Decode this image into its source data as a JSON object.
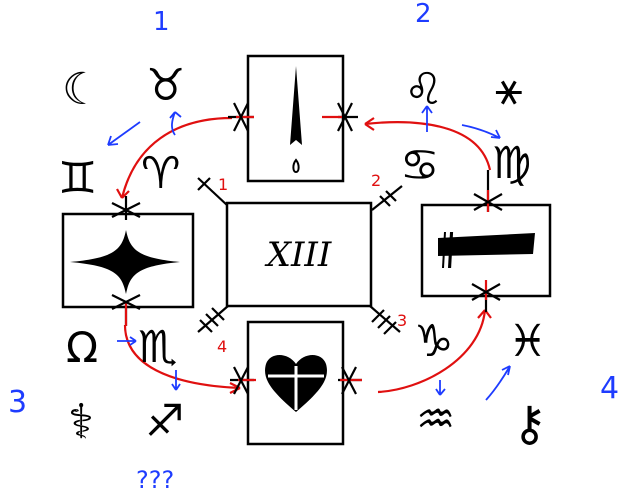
{
  "center": {
    "text": "XIII"
  },
  "corner_numbers": [
    "1",
    "2",
    "3",
    "4"
  ],
  "connector_numbers": [
    "1",
    "2",
    "3",
    "4"
  ],
  "note": "???",
  "glyphs": {
    "moon": "☾",
    "taurus": "♉",
    "gemini": "♊",
    "aries": "♈",
    "leo": "♌",
    "asterisk": "⚹",
    "cancer": "♋",
    "virgo": "♍",
    "omega": "Ω",
    "scorpio": "♏",
    "caduceus": "⚕",
    "sagittarius": "♐",
    "capricorn": "♑",
    "pisces": "♓",
    "aquarius": "♒",
    "key": "⚷"
  },
  "colors": {
    "red": "#e01010",
    "blue": "#1e3cff",
    "ink": "#000000"
  }
}
